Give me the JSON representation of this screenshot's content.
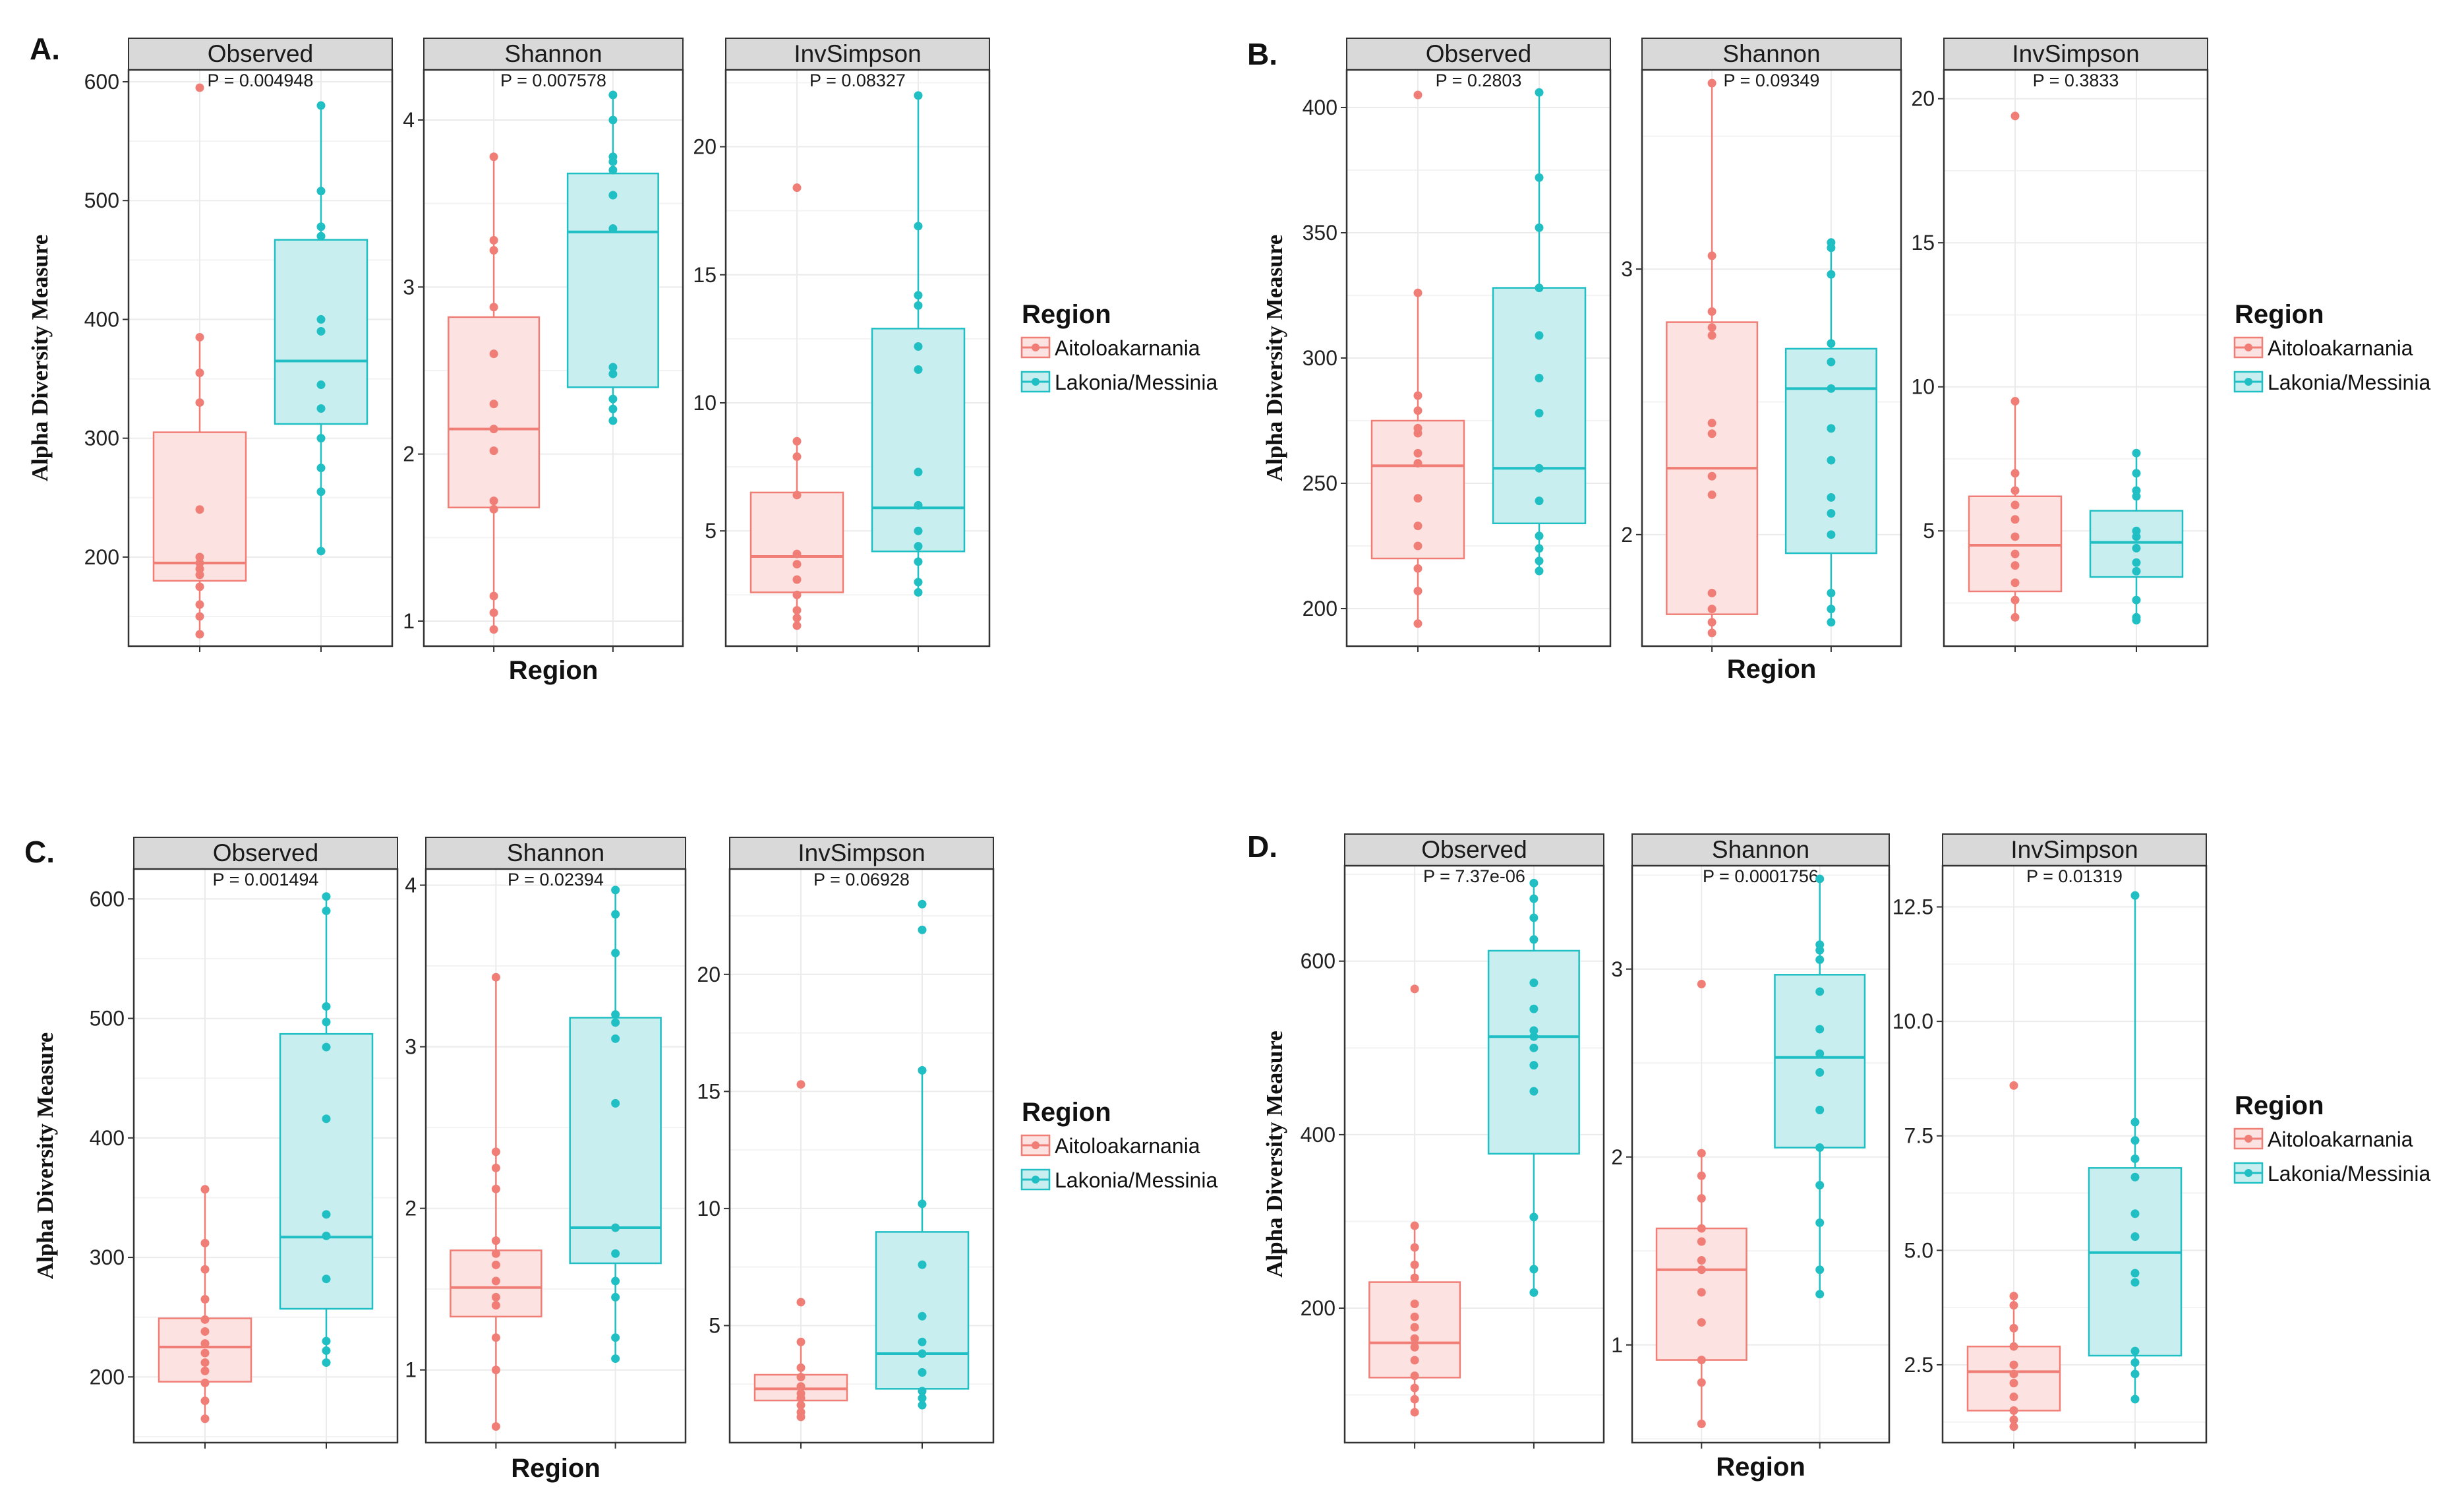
{
  "colors": {
    "group1": "#F07E76",
    "group1_fill": "#FCE3E1",
    "group2": "#1FBFC4",
    "group2_fill": "#C8EEF0",
    "strip_bg": "#D9D9D9",
    "grid": "#EBEBEB",
    "frame": "#333333"
  },
  "chart_data": [
    {
      "panel_label": "A.",
      "type": "boxplot",
      "xlabel": "Region",
      "ylabel": "Alpha Diversity Measure",
      "groups": [
        "Aitoloakarnania",
        "Lakonia/Messinia"
      ],
      "legend": {
        "title": "Region",
        "labels": [
          "Aitoloakarnania",
          "Lakonia/Messinia"
        ]
      },
      "facets": [
        {
          "title": "Observed",
          "p_label": "P = 0.004948",
          "ylim": [
            125,
            610
          ],
          "yticks": [
            200,
            300,
            400,
            500,
            600
          ],
          "boxes": [
            {
              "q1": 180,
              "median": 195,
              "q3": 305,
              "low": 135,
              "high": 385,
              "points": [
                135,
                150,
                160,
                175,
                185,
                190,
                195,
                200,
                240,
                330,
                355,
                385,
                595
              ]
            },
            {
              "q1": 312,
              "median": 365,
              "q3": 467,
              "low": 205,
              "high": 580,
              "points": [
                205,
                255,
                275,
                300,
                325,
                345,
                390,
                400,
                470,
                478,
                508,
                580
              ]
            }
          ]
        },
        {
          "title": "Shannon",
          "p_label": "P = 0.007578",
          "ylim": [
            0.85,
            4.3
          ],
          "yticks": [
            1,
            2,
            3,
            4
          ],
          "boxes": [
            {
              "q1": 1.68,
              "median": 2.15,
              "q3": 2.82,
              "low": 0.95,
              "high": 3.78,
              "points": [
                0.95,
                1.05,
                1.15,
                1.67,
                1.72,
                2.02,
                2.15,
                2.3,
                2.6,
                2.88,
                3.22,
                3.28,
                3.78
              ]
            },
            {
              "q1": 2.4,
              "median": 3.33,
              "q3": 3.68,
              "low": 2.2,
              "high": 4.15,
              "points": [
                2.2,
                2.27,
                2.33,
                2.48,
                2.52,
                3.35,
                3.55,
                3.7,
                3.75,
                3.78,
                4.0,
                4.15
              ]
            }
          ]
        },
        {
          "title": "InvSimpson",
          "p_label": "P = 0.08327",
          "ylim": [
            0.5,
            23.0
          ],
          "yticks": [
            5,
            10,
            15,
            20
          ],
          "boxes": [
            {
              "q1": 2.6,
              "median": 4.0,
              "q3": 6.5,
              "low": 1.3,
              "high": 8.5,
              "points": [
                1.3,
                1.6,
                1.9,
                2.5,
                3.1,
                3.7,
                4.1,
                6.4,
                7.9,
                8.5,
                18.4
              ]
            },
            {
              "q1": 4.2,
              "median": 5.9,
              "q3": 12.9,
              "low": 2.6,
              "high": 22.0,
              "points": [
                2.6,
                3.0,
                3.8,
                4.4,
                5.0,
                6.0,
                7.3,
                11.3,
                12.2,
                13.8,
                14.2,
                16.9,
                22.0
              ]
            }
          ]
        }
      ]
    },
    {
      "panel_label": "B.",
      "type": "boxplot",
      "xlabel": "Region",
      "ylabel": "Alpha Diversity Measure",
      "groups": [
        "Aitoloakarnania",
        "Lakonia/Messinia"
      ],
      "legend": {
        "title": "Region",
        "labels": [
          "Aitoloakarnania",
          "Lakonia/Messinia"
        ]
      },
      "facets": [
        {
          "title": "Observed",
          "p_label": "P = 0.2803",
          "ylim": [
            185,
            415
          ],
          "yticks": [
            200,
            250,
            300,
            350,
            400
          ],
          "boxes": [
            {
              "q1": 220,
              "median": 257,
              "q3": 275,
              "low": 194,
              "high": 326,
              "points": [
                194,
                207,
                216,
                225,
                233,
                244,
                258,
                262,
                270,
                272,
                279,
                285,
                326,
                405
              ]
            },
            {
              "q1": 234,
              "median": 256,
              "q3": 328,
              "low": 215,
              "high": 406,
              "points": [
                215,
                219,
                224,
                229,
                243,
                256,
                278,
                292,
                309,
                328,
                352,
                372,
                406
              ]
            }
          ]
        },
        {
          "title": "Shannon",
          "p_label": "P = 0.09349",
          "ylim": [
            1.58,
            3.75
          ],
          "yticks": [
            2,
            3
          ],
          "boxes": [
            {
              "q1": 1.7,
              "median": 2.25,
              "q3": 2.8,
              "low": 1.63,
              "high": 3.7,
              "points": [
                1.63,
                1.67,
                1.72,
                1.78,
                2.15,
                2.22,
                2.38,
                2.42,
                2.75,
                2.78,
                2.84,
                3.05,
                3.7
              ]
            },
            {
              "q1": 1.93,
              "median": 2.55,
              "q3": 2.7,
              "low": 1.67,
              "high": 3.1,
              "points": [
                1.67,
                1.72,
                1.78,
                2.0,
                2.08,
                2.14,
                2.28,
                2.4,
                2.55,
                2.65,
                2.72,
                2.98,
                3.08,
                3.1
              ]
            }
          ]
        },
        {
          "title": "InvSimpson",
          "p_label": "P = 0.3833",
          "ylim": [
            1.0,
            21.0
          ],
          "yticks": [
            5,
            10,
            15,
            20
          ],
          "boxes": [
            {
              "q1": 2.9,
              "median": 4.5,
              "q3": 6.2,
              "low": 2.0,
              "high": 9.5,
              "points": [
                2.0,
                2.6,
                3.2,
                3.8,
                4.2,
                4.8,
                5.4,
                5.9,
                6.4,
                7.0,
                9.5,
                19.4
              ]
            },
            {
              "q1": 3.4,
              "median": 4.6,
              "q3": 5.7,
              "low": 1.9,
              "high": 7.7,
              "points": [
                1.9,
                2.0,
                2.6,
                3.6,
                3.9,
                4.4,
                4.8,
                5.0,
                6.2,
                6.4,
                7.0,
                7.7
              ]
            }
          ]
        }
      ]
    },
    {
      "panel_label": "C.",
      "type": "boxplot",
      "xlabel": "Region",
      "ylabel": "Alpha Diversity Measure",
      "groups": [
        "Aitoloakarnania",
        "Lakonia/Messinia"
      ],
      "legend": {
        "title": "Region",
        "labels": [
          "Aitoloakarnania",
          "Lakonia/Messinia"
        ]
      },
      "facets": [
        {
          "title": "Observed",
          "p_label": "P = 0.001494",
          "ylim": [
            145,
            625
          ],
          "yticks": [
            200,
            300,
            400,
            500,
            600
          ],
          "boxes": [
            {
              "q1": 196,
              "median": 225,
              "q3": 249,
              "low": 165,
              "high": 357,
              "points": [
                165,
                180,
                195,
                205,
                212,
                220,
                228,
                238,
                248,
                265,
                290,
                312,
                357
              ]
            },
            {
              "q1": 257,
              "median": 317,
              "q3": 487,
              "low": 212,
              "high": 602,
              "points": [
                212,
                222,
                230,
                282,
                318,
                336,
                416,
                476,
                497,
                510,
                590,
                602
              ]
            }
          ]
        },
        {
          "title": "Shannon",
          "p_label": "P = 0.02394",
          "ylim": [
            0.55,
            4.1
          ],
          "yticks": [
            1,
            2,
            3,
            4
          ],
          "boxes": [
            {
              "q1": 1.33,
              "median": 1.51,
              "q3": 1.74,
              "low": 0.65,
              "high": 3.43,
              "points": [
                0.65,
                1.0,
                1.2,
                1.4,
                1.45,
                1.55,
                1.65,
                1.72,
                1.8,
                2.12,
                2.25,
                2.35,
                3.43
              ]
            },
            {
              "q1": 1.66,
              "median": 1.88,
              "q3": 3.18,
              "low": 1.07,
              "high": 3.97,
              "points": [
                1.07,
                1.2,
                1.45,
                1.55,
                1.72,
                1.88,
                2.65,
                3.05,
                3.15,
                3.2,
                3.58,
                3.82,
                3.97
              ]
            }
          ]
        },
        {
          "title": "InvSimpson",
          "p_label": "P = 0.06928",
          "ylim": [
            0.0,
            24.5
          ],
          "yticks": [
            5,
            10,
            15,
            20
          ],
          "boxes": [
            {
              "q1": 1.8,
              "median": 2.3,
              "q3": 2.9,
              "low": 1.1,
              "high": 4.3,
              "points": [
                1.1,
                1.3,
                1.6,
                1.9,
                2.1,
                2.4,
                2.8,
                3.2,
                4.3,
                6.0,
                15.3
              ]
            },
            {
              "q1": 2.3,
              "median": 3.8,
              "q3": 9.0,
              "low": 1.6,
              "high": 15.9,
              "points": [
                1.6,
                1.9,
                2.2,
                3.0,
                3.8,
                4.3,
                5.4,
                7.6,
                10.2,
                15.9,
                21.9,
                23.0
              ]
            }
          ]
        }
      ]
    },
    {
      "panel_label": "D.",
      "type": "boxplot",
      "xlabel": "Region",
      "ylabel": "Alpha Diversity Measure",
      "groups": [
        "Aitoloakarnania",
        "Lakonia/Messinia"
      ],
      "legend": {
        "title": "Region",
        "labels": [
          "Aitoloakarnania",
          "Lakonia/Messinia"
        ]
      },
      "facets": [
        {
          "title": "Observed",
          "p_label": "P = 7.37e-06",
          "ylim": [
            45,
            710
          ],
          "yticks": [
            200,
            400,
            600
          ],
          "boxes": [
            {
              "q1": 120,
              "median": 160,
              "q3": 230,
              "low": 80,
              "high": 295,
              "points": [
                80,
                95,
                108,
                122,
                140,
                155,
                165,
                178,
                190,
                205,
                235,
                250,
                270,
                295,
                568
              ]
            },
            {
              "q1": 378,
              "median": 513,
              "q3": 612,
              "low": 218,
              "high": 690,
              "points": [
                218,
                245,
                305,
                450,
                480,
                500,
                513,
                520,
                545,
                575,
                625,
                650,
                672,
                690
              ]
            }
          ]
        },
        {
          "title": "Shannon",
          "p_label": "P = 0.0001756",
          "ylim": [
            0.48,
            3.55
          ],
          "yticks": [
            1,
            2,
            3
          ],
          "boxes": [
            {
              "q1": 0.92,
              "median": 1.4,
              "q3": 1.62,
              "low": 0.58,
              "high": 2.02,
              "points": [
                0.58,
                0.8,
                0.92,
                1.12,
                1.28,
                1.4,
                1.45,
                1.55,
                1.62,
                1.78,
                1.9,
                2.02,
                2.92
              ]
            },
            {
              "q1": 2.05,
              "median": 2.53,
              "q3": 2.97,
              "low": 1.27,
              "high": 3.48,
              "points": [
                1.27,
                1.4,
                1.65,
                1.85,
                2.05,
                2.25,
                2.45,
                2.55,
                2.68,
                2.88,
                3.05,
                3.1,
                3.13,
                3.48
              ]
            }
          ]
        },
        {
          "title": "InvSimpson",
          "p_label": "P = 0.01319",
          "ylim": [
            0.8,
            13.4
          ],
          "yticks": [
            2.5,
            5.0,
            7.5,
            10.0,
            12.5
          ],
          "boxes": [
            {
              "q1": 1.5,
              "median": 2.35,
              "q3": 2.9,
              "low": 1.15,
              "high": 4.0,
              "points": [
                1.15,
                1.3,
                1.5,
                1.8,
                2.1,
                2.3,
                2.5,
                2.9,
                3.3,
                3.8,
                4.0,
                8.6
              ]
            },
            {
              "q1": 2.7,
              "median": 4.95,
              "q3": 6.8,
              "low": 1.75,
              "high": 12.75,
              "points": [
                1.75,
                2.3,
                2.55,
                2.8,
                4.3,
                4.5,
                5.3,
                5.8,
                6.6,
                7.0,
                7.4,
                7.8,
                12.75
              ]
            }
          ]
        }
      ]
    }
  ]
}
